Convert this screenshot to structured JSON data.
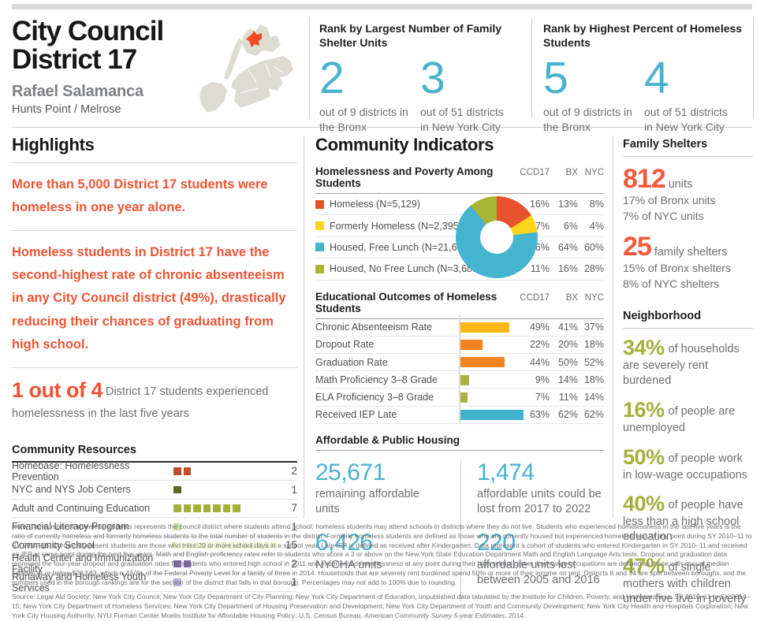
{
  "header": {
    "title_line1": "City Council",
    "title_line2": "District 17",
    "member": "Rafael Salamanca",
    "neighborhoods": "Hunts Point / Melrose"
  },
  "ranks": [
    {
      "heading": "Rank by Largest Number of Family Shelter Units",
      "items": [
        {
          "value": "2",
          "caption": "out of 9 districts in the Bronx"
        },
        {
          "value": "3",
          "caption": "out of 51 districts in New York City"
        }
      ]
    },
    {
      "heading": "Rank by Highest Percent of Homeless Students",
      "items": [
        {
          "value": "5",
          "caption": "out of 9 districts in the Bronx"
        },
        {
          "value": "4",
          "caption": "out of 51 districts in New York City"
        }
      ]
    }
  ],
  "highlights": {
    "title": "Highlights",
    "paragraph1": "More than 5,000 District 17 students were homeless in one year alone.",
    "paragraph2": "Homeless students in District 17 have the second-highest rate of chronic absenteeism in any City Council district (49%), drastically reducing their chances of graduating from high school.",
    "stat_big": "1 out of 4",
    "stat_rest": "District 17 students experienced homelessness in the last five years"
  },
  "resources": {
    "title": "Community Resources",
    "rows": [
      {
        "label": "Homebase: Homelessness Prevention",
        "count": 2,
        "color": "#c44d29",
        "small": false
      },
      {
        "label": "NYC and NYS Job Centers",
        "count": 1,
        "color": "#5c671e",
        "small": false
      },
      {
        "label": "Adult and Continuing Education",
        "count": 7,
        "color": "#a5b13b",
        "small": false
      },
      {
        "label": "Financial Literacy Program",
        "count": 1,
        "color": "#c9dfa4",
        "small": false
      },
      {
        "label": "Community School",
        "count": 15,
        "color": "#edefc6",
        "small": true
      },
      {
        "label": "Health Center and Immunization Facility",
        "count": 2,
        "color": "#7f65a9",
        "small": false
      },
      {
        "label": "Runaway and Homeless Youth Services",
        "count": 1,
        "color": "#c0b3db",
        "small": false
      }
    ]
  },
  "indicators": {
    "title": "Community Indicators",
    "col_headers": [
      "CCD17",
      "BX",
      "NYC"
    ],
    "poverty": {
      "title": "Homelessness and Poverty Among Students",
      "rows": [
        {
          "label": "Homeless (N=5,129)",
          "color": "#e8522e",
          "values": [
            "16%",
            "13%",
            "8%"
          ]
        },
        {
          "label": "Formerly Homeless (N=2,395)",
          "color": "#fed51d",
          "values": [
            "7%",
            "6%",
            "4%"
          ]
        },
        {
          "label": "Housed, Free Lunch (N=21,636)",
          "color": "#45b4ce",
          "values": [
            "66%",
            "64%",
            "60%"
          ]
        },
        {
          "label": "Housed, No Free Lunch (N=3,689)",
          "color": "#a9b534",
          "values": [
            "11%",
            "16%",
            "28%"
          ]
        }
      ],
      "donut": {
        "values": [
          16,
          7,
          66,
          11
        ],
        "colors": [
          "#e8522e",
          "#fed51d",
          "#45b4ce",
          "#a9b534"
        ]
      }
    },
    "education": {
      "title": "Educational Outcomes of Homeless Students",
      "rows": [
        {
          "label": "Chronic Absenteeism Rate",
          "pct": 49,
          "color": "#fdb713",
          "values": [
            "49%",
            "41%",
            "37%"
          ]
        },
        {
          "label": "Dropout Rate",
          "pct": 22,
          "color": "#f5831f",
          "values": [
            "22%",
            "20%",
            "18%"
          ]
        },
        {
          "label": "Graduation Rate",
          "pct": 44,
          "color": "#f5831f",
          "values": [
            "44%",
            "50%",
            "52%"
          ]
        },
        {
          "label": "Math Proficiency 3–8 Grade",
          "pct": 9,
          "color": "#a8b343",
          "values": [
            "9%",
            "14%",
            "18%"
          ]
        },
        {
          "label": "ELA Proficiency 3–8 Grade",
          "pct": 7,
          "color": "#a8b343",
          "values": [
            "7%",
            "11%",
            "14%"
          ]
        },
        {
          "label": "Received IEP Late",
          "pct": 63,
          "color": "#3fb2ce",
          "values": [
            "63%",
            "62%",
            "62%"
          ]
        }
      ]
    },
    "housing": {
      "title": "Affordable & Public Housing",
      "stats": [
        {
          "value": "25,671",
          "label": "remaining affordable units"
        },
        {
          "value": "1,474",
          "label": "affordable units could be lost from 2017 to 2022"
        },
        {
          "value": "6,426",
          "label": "NYCHA units"
        },
        {
          "value": "220",
          "label": "affordable units lost between 2005 and 2016"
        }
      ]
    }
  },
  "shelters": {
    "title": "Family Shelters",
    "stats": [
      {
        "value": "812",
        "unit": "units",
        "line1": "17% of Bronx units",
        "line2": "7% of NYC units"
      },
      {
        "value": "25",
        "unit": "family shelters",
        "line1": "15% of Bronx shelters",
        "line2": "8% of NYC shelters"
      }
    ]
  },
  "neighborhood": {
    "title": "Neighborhood",
    "stats": [
      {
        "value": "34%",
        "text": "of households are severely rent burdened"
      },
      {
        "value": "16%",
        "text": "of people are unemployed"
      },
      {
        "value": "50%",
        "text": "of people work in low-wage occupations"
      },
      {
        "value": "40%",
        "text": "of people have less than a high school education"
      },
      {
        "value": "47%",
        "text": "of single mothers with children under five live in poverty"
      }
    ]
  },
  "footer": {
    "note": "Note: The number of homeless students represents the council district where students attend school; homeless students may attend schools in districts where they do not live. Students who experienced homelessness in the last five years is the ratio of currently homeless and formerly homeless students to the total number of students in the district. Formerly homeless students are defined as those who are currently housed but experienced homelessness at any point during SY 2010–11 to SY 2014–15. Chronically absent students are those who miss 20 or more school days in a school year. Late IEP is defined as received after Kindergarten. Data represent a cohort of students who entered Kindergarten in SY 2010–11 and received an IEP at some point during the next five years. Math and English proficiency rates refer to students who score a 3 or above on the New York State Education Department Math and English Language Arts tests. Dropout and graduation data represent the four-year dropout and graduation rates for students who entered high school in 2011 and experienced homelessness at any point during their high school career. Low-wage occupations are defined as those with annual median salaries at or below $28,583, which is 150% of the Federal Poverty Level for a family of three in 2014. Households that are severely rent burdened spend 50% or more of their income on rent. Districts 8 and 34 are split between boroughs, and the numbers used in the borough rankings are for the section of the district that falls in that borough. Percentages may not add to 100% due to rounding.",
    "source_prefix": "Source: Legal Aid Society; New York City Council; New York City Department of City Planning; New York City Department of Education, unpublished data tabulated by the Institute for Children, Poverty, and Homelessness, SY 2010–11 to SY 2014–15; New York City Department of Homeless Services; New York City Department of Housing Preservation and Development; New York City Department of Youth and Community Development; New York City Health and Hospitals Corporation; New York City Housing Authority; NYU Furman Center Moelis Institute for Affordable Housing Policy; U.S. Census Bureau, ",
    "source_italic": "American Community Survey 5-year Estimates",
    "source_suffix": ", 2014."
  },
  "chart_data": [
    {
      "type": "pie",
      "title": "Homelessness and Poverty Among Students (CCD17)",
      "labels": [
        "Homeless (N=5,129)",
        "Formerly Homeless (N=2,395)",
        "Housed, Free Lunch (N=21,636)",
        "Housed, No Free Lunch (N=3,689)"
      ],
      "values": [
        16,
        7,
        66,
        11
      ],
      "colors": [
        "#e8522e",
        "#fed51d",
        "#45b4ce",
        "#a9b534"
      ],
      "legend_position": "left",
      "donut": true
    },
    {
      "type": "bar",
      "title": "Educational Outcomes of Homeless Students (CCD17)",
      "categories": [
        "Chronic Absenteeism Rate",
        "Dropout Rate",
        "Graduation Rate",
        "Math Proficiency 3–8 Grade",
        "ELA Proficiency 3–8 Grade",
        "Received IEP Late"
      ],
      "values": [
        49,
        22,
        44,
        9,
        7,
        63
      ],
      "series_bx": [
        41,
        20,
        50,
        14,
        11,
        62
      ],
      "series_nyc": [
        37,
        18,
        52,
        18,
        14,
        62
      ],
      "orientation": "horizontal",
      "xlim": [
        0,
        100
      ],
      "grid": false
    }
  ]
}
